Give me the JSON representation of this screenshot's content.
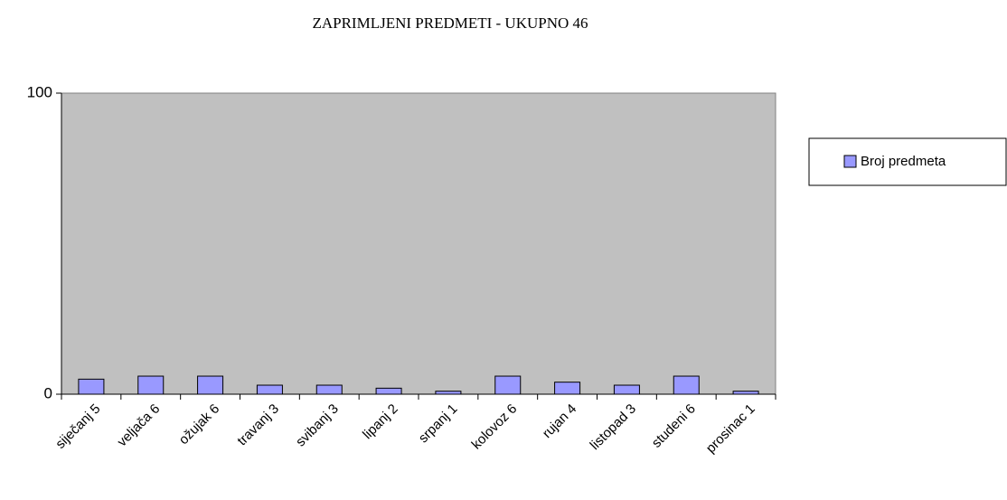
{
  "chart_data": {
    "type": "bar",
    "title": "ZAPRIMLJENI PREDMETI - UKUPNO 46",
    "categories": [
      "siječanj 5",
      "veljača 6",
      "ožujak 6",
      "travanj 3",
      "svibanj 3",
      "lipanj 2",
      "srpanj 1",
      "kolovoz 6",
      "rujan 4",
      "listopad 3",
      "studeni 6",
      "prosinac 1"
    ],
    "series": [
      {
        "name": "Broj predmeta",
        "color": "#9999ff",
        "values": [
          5,
          6,
          6,
          3,
          3,
          2,
          1,
          6,
          4,
          3,
          6,
          1
        ]
      }
    ],
    "ylim": [
      0,
      100
    ],
    "yticks": [
      0,
      100
    ],
    "grid": false,
    "legend": "right"
  }
}
